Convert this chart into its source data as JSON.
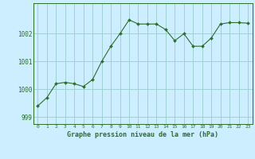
{
  "x": [
    0,
    1,
    2,
    3,
    4,
    5,
    6,
    7,
    8,
    9,
    10,
    11,
    12,
    13,
    14,
    15,
    16,
    17,
    18,
    19,
    20,
    21,
    22,
    23
  ],
  "y": [
    999.4,
    999.7,
    1000.2,
    1000.25,
    1000.2,
    1000.1,
    1000.35,
    1001.0,
    1001.55,
    1002.0,
    1002.5,
    1002.35,
    1002.35,
    1002.35,
    1002.15,
    1001.75,
    1002.0,
    1001.55,
    1001.55,
    1001.85,
    1002.35,
    1002.4,
    1002.4,
    1002.38
  ],
  "line_color": "#2d6e2d",
  "marker_color": "#2d6e2d",
  "bg_color": "#cceeff",
  "grid_color": "#99cccc",
  "axis_color": "#2d6e2d",
  "tick_color": "#2d6e2d",
  "label_color": "#2d6e2d",
  "xlabel": "Graphe pression niveau de la mer (hPa)",
  "ylim": [
    998.75,
    1003.1
  ],
  "yticks": [
    999,
    1000,
    1001,
    1002
  ],
  "xticks": [
    0,
    1,
    2,
    3,
    4,
    5,
    6,
    7,
    8,
    9,
    10,
    11,
    12,
    13,
    14,
    15,
    16,
    17,
    18,
    19,
    20,
    21,
    22,
    23
  ]
}
